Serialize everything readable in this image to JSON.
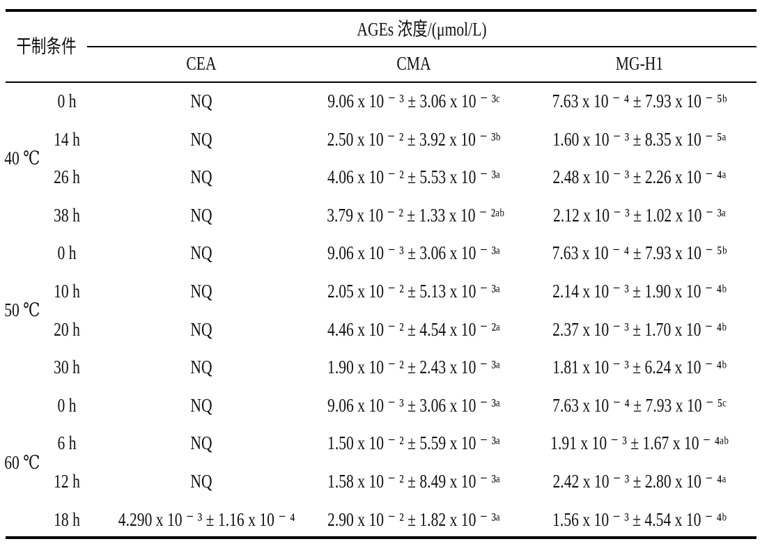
{
  "table": {
    "header_condition": "干制条件",
    "header_group": "AGEs 浓度/(μmol/L)",
    "columns": [
      "CEA",
      "CMA",
      "MG-H1"
    ],
    "groups": [
      {
        "temperature": "40 ℃",
        "rows": [
          {
            "time": "0 h",
            "cea": "NQ",
            "cma": "9.06 x 10 ⁻ ³ ± 3.06 x 10 ⁻ ³ᶜ",
            "mgh1": "7.63 x 10 ⁻ ⁴ ± 7.93 x 10 ⁻ ⁵ᵇ"
          },
          {
            "time": "14 h",
            "cea": "NQ",
            "cma": "2.50 x 10 ⁻ ² ± 3.92 x 10 ⁻ ³ᵇ",
            "mgh1": "1.60 x 10 ⁻ ³ ± 8.35 x 10 ⁻ ⁵ᵃ"
          },
          {
            "time": "26 h",
            "cea": "NQ",
            "cma": "4.06 x 10 ⁻ ² ± 5.53 x 10 ⁻ ³ᵃ",
            "mgh1": "2.48 x 10 ⁻ ³ ± 2.26 x 10 ⁻ ⁴ᵃ"
          },
          {
            "time": "38 h",
            "cea": "NQ",
            "cma": "3.79 x 10 ⁻ ² ± 1.33 x 10 ⁻ ²ᵃᵇ",
            "mgh1": "2.12 x 10 ⁻ ³ ± 1.02 x 10 ⁻ ³ᵃ"
          }
        ]
      },
      {
        "temperature": "50 ℃",
        "rows": [
          {
            "time": "0 h",
            "cea": "NQ",
            "cma": "9.06 x 10 ⁻ ³ ± 3.06 x 10 ⁻ ³ᵃ",
            "mgh1": "7.63 x 10 ⁻ ⁴ ± 7.93 x 10 ⁻ ⁵ᵇ"
          },
          {
            "time": "10 h",
            "cea": "NQ",
            "cma": "2.05 x 10 ⁻ ² ± 5.13 x 10 ⁻ ³ᵃ",
            "mgh1": "2.14 x 10 ⁻ ³ ± 1.90 x 10 ⁻ ⁴ᵇ"
          },
          {
            "time": "20 h",
            "cea": "NQ",
            "cma": "4.46 x 10 ⁻ ² ± 4.54 x 10 ⁻ ²ᵃ",
            "mgh1": "2.37 x 10 ⁻ ³ ± 1.70 x 10 ⁻ ⁴ᵇ"
          },
          {
            "time": "30 h",
            "cea": "NQ",
            "cma": "1.90 x 10 ⁻ ² ± 2.43 x 10 ⁻ ³ᵃ",
            "mgh1": "1.81 x 10 ⁻ ³ ± 6.24 x 10 ⁻ ⁴ᵇ"
          }
        ]
      },
      {
        "temperature": "60 ℃",
        "rows": [
          {
            "time": "0 h",
            "cea": "NQ",
            "cma": "9.06 x 10 ⁻ ³ ± 3.06 x 10 ⁻ ³ᵃ",
            "mgh1": "7.63 x 10 ⁻ ⁴ ± 7.93 x 10 ⁻ ⁵ᶜ"
          },
          {
            "time": "6 h",
            "cea": "NQ",
            "cma": "1.50 x 10 ⁻ ² ± 5.59 x 10 ⁻ ³ᵃ",
            "mgh1": "1.91 x 10 ⁻ ³ ± 1.67 x 10 ⁻ ⁴ᵃᵇ"
          },
          {
            "time": "12 h",
            "cea": "NQ",
            "cma": "1.58 x 10 ⁻ ² ± 8.49 x 10 ⁻ ³ᵃ",
            "mgh1": "2.42 x 10 ⁻ ³ ± 2.80 x 10 ⁻ ⁴ᵃ"
          },
          {
            "time": "18 h",
            "cea": "4.290 x 10 ⁻ ³ ± 1.16 x 10 ⁻ ⁴",
            "cma": "2.90 x 10 ⁻ ² ± 1.82 x 10 ⁻ ³ᵃ",
            "mgh1": "1.56 x 10 ⁻ ³ ± 4.54 x 10 ⁻ ⁴ᵇ"
          }
        ]
      }
    ]
  }
}
